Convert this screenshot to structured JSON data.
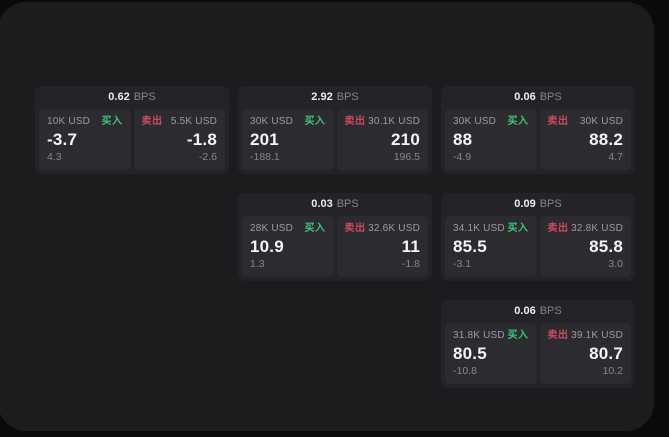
{
  "labels": {
    "bps_unit": "BPS",
    "buy": "买入",
    "sell": "卖出"
  },
  "colors": {
    "buy": "#3fc479",
    "sell": "#cb4a5e",
    "panel_bg": "#1c1c1e",
    "card_bg": "#242428",
    "subpanel_bg": "#2c2c30"
  },
  "cards": [
    {
      "col": 1,
      "row": 1,
      "bps": "0.62",
      "buy": {
        "amount": "10K USD",
        "price": "-3.7",
        "delta": "4.3"
      },
      "sell": {
        "amount": "5.5K USD",
        "price": "-1.8",
        "delta": "-2.6"
      }
    },
    {
      "col": 2,
      "row": 1,
      "bps": "2.92",
      "buy": {
        "amount": "30K USD",
        "price": "201",
        "delta": "-188.1"
      },
      "sell": {
        "amount": "30.1K USD",
        "price": "210",
        "delta": "196.5"
      }
    },
    {
      "col": 3,
      "row": 1,
      "bps": "0.06",
      "buy": {
        "amount": "30K USD",
        "price": "88",
        "delta": "-4.9"
      },
      "sell": {
        "amount": "30K USD",
        "price": "88.2",
        "delta": "4.7"
      }
    },
    {
      "col": 2,
      "row": 2,
      "bps": "0.03",
      "buy": {
        "amount": "28K USD",
        "price": "10.9",
        "delta": "1.3"
      },
      "sell": {
        "amount": "32.6K USD",
        "price": "11",
        "delta": "-1.8"
      }
    },
    {
      "col": 3,
      "row": 2,
      "bps": "0.09",
      "buy": {
        "amount": "34.1K USD",
        "price": "85.5",
        "delta": "-3.1"
      },
      "sell": {
        "amount": "32.8K USD",
        "price": "85.8",
        "delta": "3.0"
      }
    },
    {
      "col": 3,
      "row": 3,
      "bps": "0.06",
      "buy": {
        "amount": "31.8K USD",
        "price": "80.5",
        "delta": "-10.8"
      },
      "sell": {
        "amount": "39.1K USD",
        "price": "80.7",
        "delta": "10.2"
      }
    }
  ]
}
